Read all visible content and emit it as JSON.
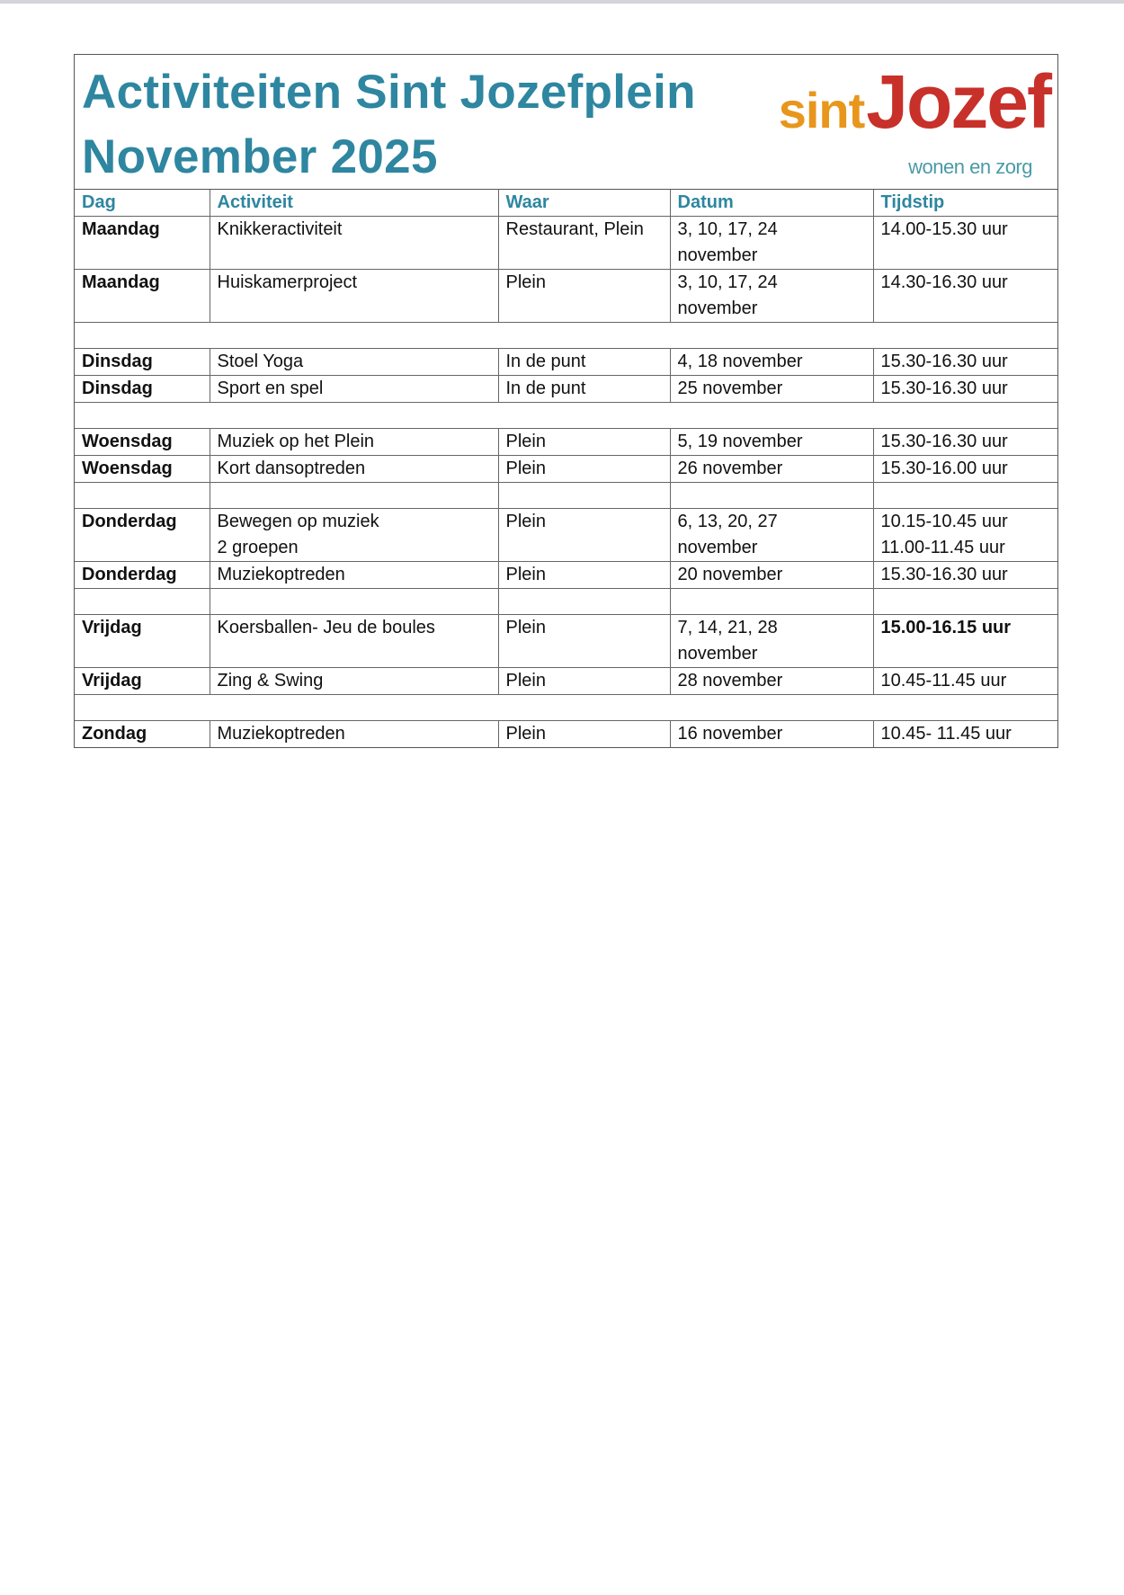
{
  "title_line1": "Activiteiten Sint Jozefplein",
  "title_line2": "November 2025",
  "logo": {
    "sint": "sint",
    "jozef": "Jozef",
    "tagline": "wonen en zorg",
    "colors": {
      "sint": "#e8961c",
      "jozef": "#c8302a",
      "tagline": "#4a9aa8"
    }
  },
  "accent_color": "#2e86a0",
  "columns": [
    "Dag",
    "Activiteit",
    "Waar",
    "Datum",
    "Tijdstip"
  ],
  "rows": [
    {
      "dag": "Maandag",
      "activiteit": "Knikkeractiviteit",
      "waar": "Restaurant, Plein",
      "datum": "3, 10, 17, 24\nnovember",
      "tijdstip": "14.00-15.30 uur"
    },
    {
      "dag": "Maandag",
      "activiteit": "Huiskamerproject",
      "waar": "Plein",
      "datum": "3, 10, 17, 24\nnovember",
      "tijdstip": "14.30-16.30 uur"
    },
    {
      "dag": "Dinsdag",
      "activiteit": "Stoel Yoga",
      "waar": "In de punt",
      "datum": "4, 18 november",
      "tijdstip": "15.30-16.30 uur"
    },
    {
      "dag": "Dinsdag",
      "activiteit": "Sport en spel",
      "waar": "In de punt",
      "datum": "25 november",
      "tijdstip": "15.30-16.30 uur"
    },
    {
      "dag": "Woensdag",
      "activiteit": "Muziek op het Plein",
      "waar": "Plein",
      "datum": "5, 19 november",
      "tijdstip": "15.30-16.30 uur"
    },
    {
      "dag": "Woensdag",
      "activiteit": "Kort dansoptreden",
      "waar": "Plein",
      "datum": "26 november",
      "tijdstip": "15.30-16.00 uur"
    },
    {
      "dag": "Donderdag",
      "activiteit": "Bewegen op muziek\n2 groepen",
      "waar": "Plein",
      "datum": "6, 13, 20, 27\nnovember",
      "tijdstip": "10.15-10.45 uur\n11.00-11.45 uur"
    },
    {
      "dag": "Donderdag",
      "activiteit": "Muziekoptreden",
      "waar": "Plein",
      "datum": "20 november",
      "tijdstip": "15.30-16.30 uur"
    },
    {
      "dag": "Vrijdag",
      "activiteit": "Koersballen- Jeu de boules",
      "waar": "Plein",
      "datum": "7, 14, 21, 28\nnovember",
      "tijdstip": "15.00-16.15 uur",
      "tijdstip_bold": true
    },
    {
      "dag": "Vrijdag",
      "activiteit": "Zing & Swing",
      "waar": "Plein",
      "datum": "28 november",
      "tijdstip": "10.45-11.45 uur"
    },
    {
      "dag": "Zondag",
      "activiteit": "Muziekoptreden",
      "waar": "Plein",
      "datum": "16 november",
      "tijdstip": "10.45- 11.45 uur"
    }
  ]
}
